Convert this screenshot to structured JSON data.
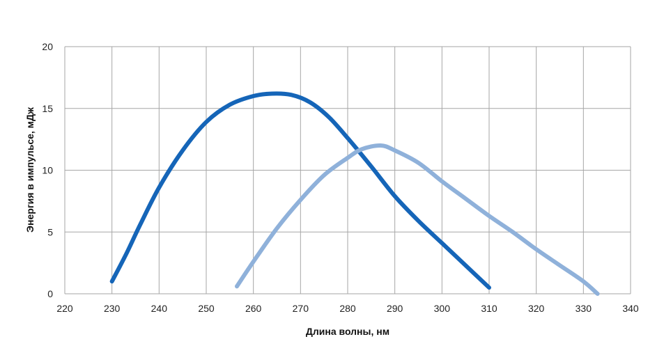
{
  "chart_data": {
    "type": "line",
    "title": "",
    "xlabel": "Длина волны, нм",
    "ylabel": "Энергия в импульсе, мДж",
    "xlim": [
      220,
      340
    ],
    "ylim": [
      0,
      20
    ],
    "xticks": [
      220,
      230,
      240,
      250,
      260,
      270,
      280,
      290,
      300,
      310,
      320,
      330,
      340
    ],
    "yticks": [
      0,
      5,
      10,
      15,
      20
    ],
    "grid": true,
    "legend": "none",
    "series": [
      {
        "color": "#1565b8",
        "x": [
          230,
          233,
          236,
          240,
          245,
          250,
          255,
          260,
          264,
          268,
          272,
          276,
          280,
          285,
          290,
          295,
          300,
          305,
          310
        ],
        "y": [
          1.0,
          3.2,
          5.6,
          8.6,
          11.6,
          13.9,
          15.3,
          16.0,
          16.2,
          16.1,
          15.5,
          14.3,
          12.6,
          10.3,
          7.9,
          5.9,
          4.1,
          2.3,
          0.5
        ]
      },
      {
        "color": "#8fb1da",
        "x": [
          256.5,
          260,
          265,
          270,
          275,
          280,
          283,
          287,
          290,
          295,
          300,
          305,
          310,
          315,
          320,
          325,
          330,
          333
        ],
        "y": [
          0.6,
          2.6,
          5.3,
          7.6,
          9.6,
          11.0,
          11.7,
          12.0,
          11.6,
          10.6,
          9.1,
          7.7,
          6.3,
          5.0,
          3.6,
          2.3,
          1.0,
          0.0
        ]
      }
    ]
  }
}
